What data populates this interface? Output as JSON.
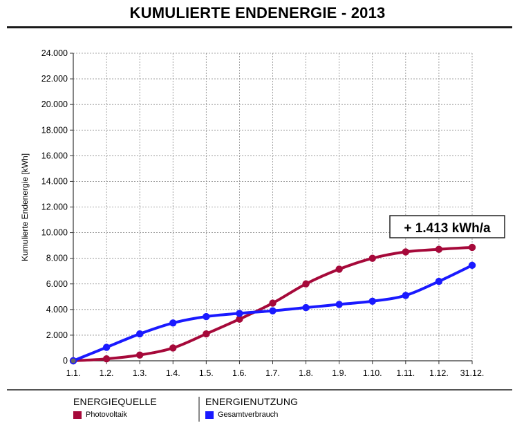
{
  "chart_data": {
    "type": "line",
    "title": "KUMULIERTE ENDENERGIE - 2013",
    "ylabel": "Kumulierte Endenergie [kWh]",
    "xlabel": "",
    "categories": [
      "1.1.",
      "1.2.",
      "1.3.",
      "1.4.",
      "1.5.",
      "1.6.",
      "1.7.",
      "1.8.",
      "1.9.",
      "1.10.",
      "1.11.",
      "1.12.",
      "31.12."
    ],
    "ylim": [
      0,
      24000
    ],
    "yticks": [
      0,
      2000,
      4000,
      6000,
      8000,
      10000,
      12000,
      14000,
      16000,
      18000,
      20000,
      22000,
      24000
    ],
    "ytick_labels": [
      "0",
      "2.000",
      "4.000",
      "6.000",
      "8.000",
      "10.000",
      "12.000",
      "14.000",
      "16.000",
      "18.000",
      "20.000",
      "22.000",
      "24.000"
    ],
    "grid": true,
    "series": [
      {
        "name": "Photovoltaik",
        "color": "#a6093a",
        "values": [
          0,
          150,
          450,
          1000,
          2100,
          3250,
          4500,
          6000,
          7150,
          8000,
          8500,
          8700,
          8850
        ]
      },
      {
        "name": "Gesamtverbrauch",
        "color": "#1a1aff",
        "values": [
          0,
          1050,
          2100,
          2950,
          3450,
          3700,
          3900,
          4150,
          4400,
          4650,
          5100,
          6200,
          7450
        ]
      }
    ],
    "annotation": {
      "text": "+ 1.413 kWh/a"
    }
  },
  "legend": {
    "left_head": "ENERGIEQUELLE",
    "left_item": "Photovoltaik",
    "left_color": "#a6093a",
    "right_head": "ENERGIENUTZUNG",
    "right_item": "Gesamtverbrauch",
    "right_color": "#1a1aff"
  }
}
